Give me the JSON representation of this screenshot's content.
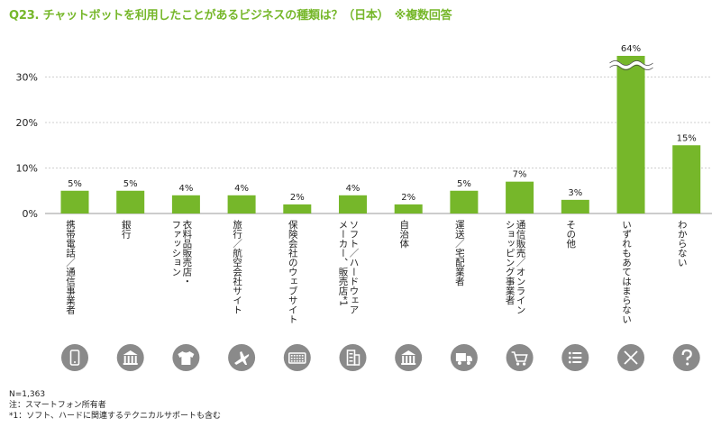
{
  "title": "Q23. チャットボットを利用したことがあるビジネスの種類は？（日本）　※複数回答",
  "notes": {
    "n": "N=1,363",
    "note1": "注：スマートフォン所有者",
    "note2": "*1：ソフト、ハードに関連するテクニカルサポートも含む"
  },
  "chart_data": {
    "type": "bar",
    "title": "Q23. チャットボットを利用したことがあるビジネスの種類は？（日本）　※複数回答",
    "xlabel": "",
    "ylabel": "",
    "y_ticks": [
      "0%",
      "10%",
      "20%",
      "30%"
    ],
    "ylim": [
      0,
      35
    ],
    "axis_break": true,
    "grid": true,
    "bar_color": "#76b72a",
    "icon_color": "#8a8a8a",
    "categories": [
      {
        "lines": [
          "携帯電話／通信事業者"
        ],
        "value": 5,
        "label": "5%",
        "icon": "smartphone-icon"
      },
      {
        "lines": [
          "銀行"
        ],
        "value": 5,
        "label": "5%",
        "icon": "bank-icon"
      },
      {
        "lines": [
          "衣料品販売店・",
          "ファッション"
        ],
        "value": 4,
        "label": "4%",
        "icon": "shirt-icon"
      },
      {
        "lines": [
          "旅行／航空会社サイト"
        ],
        "value": 4,
        "label": "4%",
        "icon": "airplane-icon"
      },
      {
        "lines": [
          "保険会社のウェブサイト"
        ],
        "value": 2,
        "label": "2%",
        "icon": "keyboard-icon"
      },
      {
        "lines": [
          "ソフト／ハードウェア",
          "メーカー、販売店*1"
        ],
        "value": 4,
        "label": "4%",
        "icon": "building-icon"
      },
      {
        "lines": [
          "自治体"
        ],
        "value": 2,
        "label": "2%",
        "icon": "government-icon"
      },
      {
        "lines": [
          "運送／宅配業者"
        ],
        "value": 5,
        "label": "5%",
        "icon": "truck-icon"
      },
      {
        "lines": [
          "通信販売／オンライン",
          "ショッピング事業者"
        ],
        "value": 7,
        "label": "7%",
        "icon": "cart-icon"
      },
      {
        "lines": [
          "その他"
        ],
        "value": 3,
        "label": "3%",
        "icon": "list-icon"
      },
      {
        "lines": [
          "いずれもあてはまらない"
        ],
        "value": 64,
        "label": "64%",
        "icon": "x-icon"
      },
      {
        "lines": [
          "わからない"
        ],
        "value": 15,
        "label": "15%",
        "icon": "question-icon"
      }
    ]
  }
}
